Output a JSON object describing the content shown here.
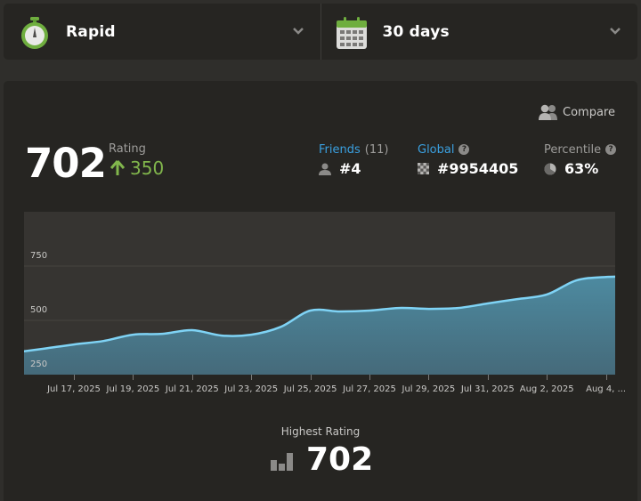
{
  "top_bar": {
    "game_type": {
      "label": "Rapid",
      "icon": "stopwatch-icon",
      "icon_color": "#6fae3f"
    },
    "period": {
      "label": "30 days",
      "icon": "calendar-icon",
      "icon_color": "#6fae3f"
    }
  },
  "card": {
    "compare_label": "Compare",
    "rating": {
      "value": "702",
      "label": "Rating",
      "delta": "350",
      "delta_direction": "up",
      "delta_color": "#81b64c"
    },
    "stats": {
      "friends": {
        "label": "Friends",
        "count": "(11)",
        "value": "#4"
      },
      "global": {
        "label": "Global",
        "help": "?",
        "value": "#9954405"
      },
      "percentile": {
        "label": "Percentile",
        "help": "?",
        "value": "63%"
      }
    },
    "highest": {
      "label": "Highest Rating",
      "value": "702"
    }
  },
  "chart_data": {
    "type": "area",
    "title": "",
    "xlabel": "",
    "ylabel": "Rating",
    "ylim": [
      250,
      1000
    ],
    "y_ticks": [
      250,
      500,
      750
    ],
    "x_tick_labels": [
      "Jul 17, 2025",
      "Jul 19, 2025",
      "Jul 21, 2025",
      "Jul 23, 2025",
      "Jul 25, 2025",
      "Jul 27, 2025",
      "Jul 29, 2025",
      "Jul 31, 2025",
      "Aug 2, 2025",
      "Aug 4, ..."
    ],
    "grid": true,
    "legend": "none",
    "line_color": "#7fd3f5",
    "fill_color": "#4a7f92",
    "x": [
      "Jul 15",
      "Jul 16",
      "Jul 17",
      "Jul 18",
      "Jul 19",
      "Jul 20",
      "Jul 21",
      "Jul 22",
      "Jul 23",
      "Jul 24",
      "Jul 25",
      "Jul 26",
      "Jul 27",
      "Jul 28",
      "Jul 29",
      "Jul 30",
      "Jul 31",
      "Aug 1",
      "Aug 2",
      "Aug 3",
      "Aug 4",
      "Aug 5"
    ],
    "values": [
      352,
      370,
      389,
      405,
      434,
      438,
      455,
      430,
      434,
      470,
      545,
      541,
      545,
      557,
      553,
      557,
      578,
      598,
      619,
      684,
      700,
      702
    ]
  }
}
